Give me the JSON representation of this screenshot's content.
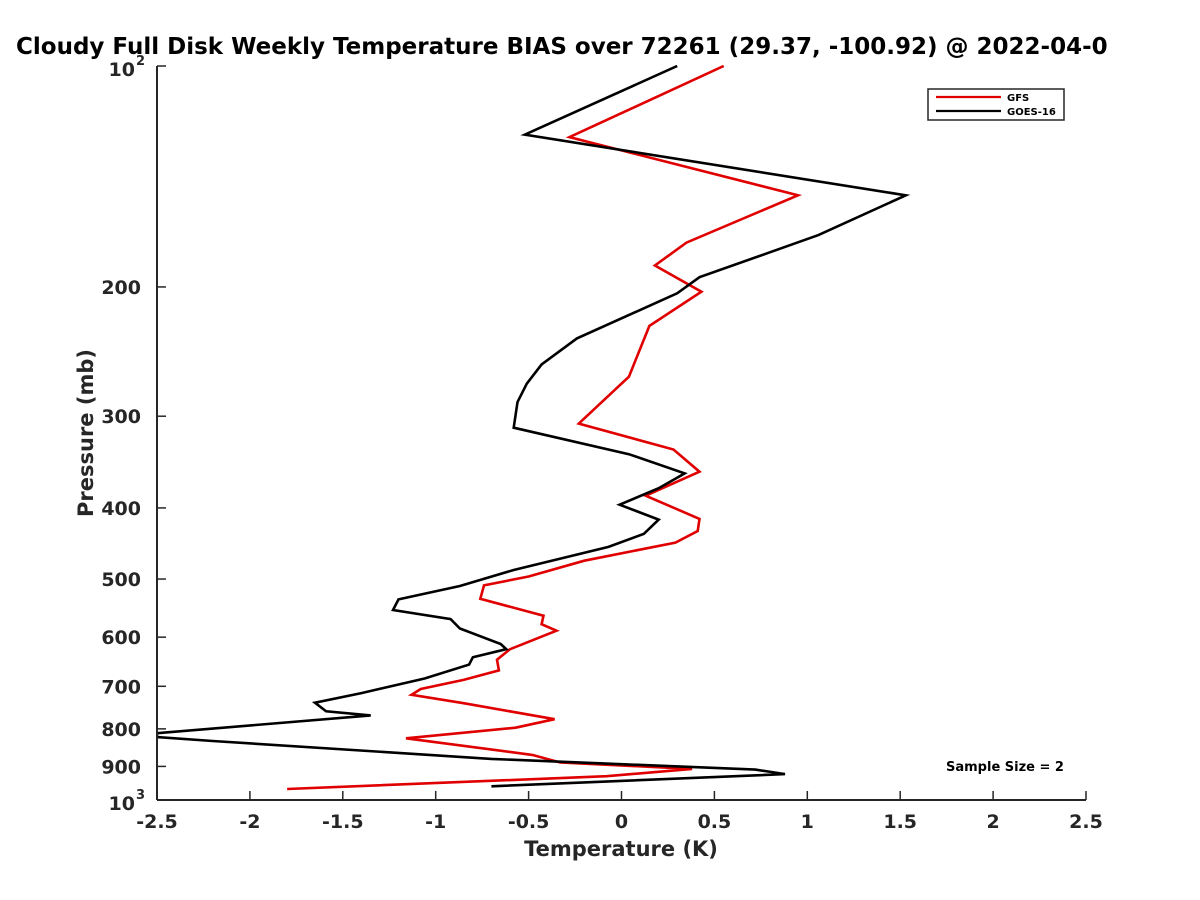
{
  "chart_data": {
    "type": "line",
    "title": "Cloudy Full Disk Weekly Temperature BIAS over 72261 (29.37, -100.92) @ 2022-04-0",
    "xlabel": "Temperature (K)",
    "ylabel": "Pressure (mb)",
    "xlim": [
      -2.5,
      2.5
    ],
    "ylim": [
      100,
      1000
    ],
    "y_scale": "log",
    "y_reversed": true,
    "grid": false,
    "legend_position": "top-right",
    "x_ticks": [
      "-2.5",
      "-2",
      "-1.5",
      "-1",
      "-0.5",
      "0",
      "0.5",
      "1",
      "1.5",
      "2",
      "2.5"
    ],
    "x_tick_values": [
      -2.5,
      -2,
      -1.5,
      -1,
      -0.5,
      0,
      0.5,
      1,
      1.5,
      2,
      2.5
    ],
    "y_ticks": [
      {
        "value": 100,
        "label": "10",
        "exponent": "2"
      },
      {
        "value": 200,
        "label": "200",
        "exponent": ""
      },
      {
        "value": 300,
        "label": "300",
        "exponent": ""
      },
      {
        "value": 400,
        "label": "400",
        "exponent": ""
      },
      {
        "value": 500,
        "label": "500",
        "exponent": ""
      },
      {
        "value": 600,
        "label": "600",
        "exponent": ""
      },
      {
        "value": 700,
        "label": "700",
        "exponent": ""
      },
      {
        "value": 800,
        "label": "800",
        "exponent": ""
      },
      {
        "value": 900,
        "label": "900",
        "exponent": ""
      },
      {
        "value": 1000,
        "label": "10",
        "exponent": "3"
      }
    ],
    "annotation": "Sample Size = 2",
    "series": [
      {
        "name": "GFS",
        "color": "#e00000",
        "points": [
          [
            0.55,
            100
          ],
          [
            -0.28,
            125
          ],
          [
            0.95,
            150
          ],
          [
            0.35,
            174
          ],
          [
            0.18,
            187
          ],
          [
            0.43,
            203
          ],
          [
            0.15,
            226
          ],
          [
            0.04,
            265
          ],
          [
            -0.23,
            307
          ],
          [
            0.28,
            333
          ],
          [
            0.42,
            357
          ],
          [
            0.13,
            385
          ],
          [
            0.42,
            414
          ],
          [
            0.41,
            430
          ],
          [
            0.29,
            446
          ],
          [
            -0.2,
            472
          ],
          [
            -0.5,
            496
          ],
          [
            -0.74,
            510
          ],
          [
            -0.76,
            532
          ],
          [
            -0.42,
            561
          ],
          [
            -0.43,
            576
          ],
          [
            -0.35,
            588
          ],
          [
            -0.6,
            623
          ],
          [
            -0.67,
            644
          ],
          [
            -0.66,
            666
          ],
          [
            -0.85,
            686
          ],
          [
            -1.08,
            706
          ],
          [
            -1.13,
            719
          ],
          [
            -0.85,
            738
          ],
          [
            -0.36,
            776
          ],
          [
            -0.57,
            797
          ],
          [
            -1.16,
            824
          ],
          [
            -0.48,
            868
          ],
          [
            -0.33,
            889
          ],
          [
            0.38,
            907
          ],
          [
            -0.08,
            928
          ],
          [
            -1.8,
            966
          ]
        ]
      },
      {
        "name": "GOES-16",
        "color": "#000000",
        "points": [
          [
            0.3,
            100
          ],
          [
            -0.52,
            124
          ],
          [
            1.53,
            150
          ],
          [
            1.06,
            170
          ],
          [
            0.42,
            194
          ],
          [
            0.3,
            204
          ],
          [
            -0.24,
            235
          ],
          [
            -0.43,
            255
          ],
          [
            -0.51,
            271
          ],
          [
            -0.56,
            287
          ],
          [
            -0.58,
            311
          ],
          [
            0.04,
            338
          ],
          [
            0.34,
            359
          ],
          [
            0.2,
            376
          ],
          [
            -0.01,
            396
          ],
          [
            0.2,
            415
          ],
          [
            0.12,
            434
          ],
          [
            -0.07,
            452
          ],
          [
            -0.58,
            486
          ],
          [
            -0.87,
            511
          ],
          [
            -1.2,
            533
          ],
          [
            -1.23,
            551
          ],
          [
            -0.92,
            567
          ],
          [
            -0.87,
            584
          ],
          [
            -0.65,
            613
          ],
          [
            -0.62,
            623
          ],
          [
            -0.8,
            639
          ],
          [
            -0.82,
            654
          ],
          [
            -1.06,
            683
          ],
          [
            -1.4,
            715
          ],
          [
            -1.65,
            737
          ],
          [
            -1.59,
            757
          ],
          [
            -1.35,
            767
          ],
          [
            -2.5,
            811
          ],
          [
            -2.5,
            821
          ],
          [
            -2.2,
            831
          ],
          [
            -0.7,
            879
          ],
          [
            0.72,
            909
          ],
          [
            0.88,
            922
          ],
          [
            -0.7,
            958
          ]
        ]
      }
    ]
  }
}
